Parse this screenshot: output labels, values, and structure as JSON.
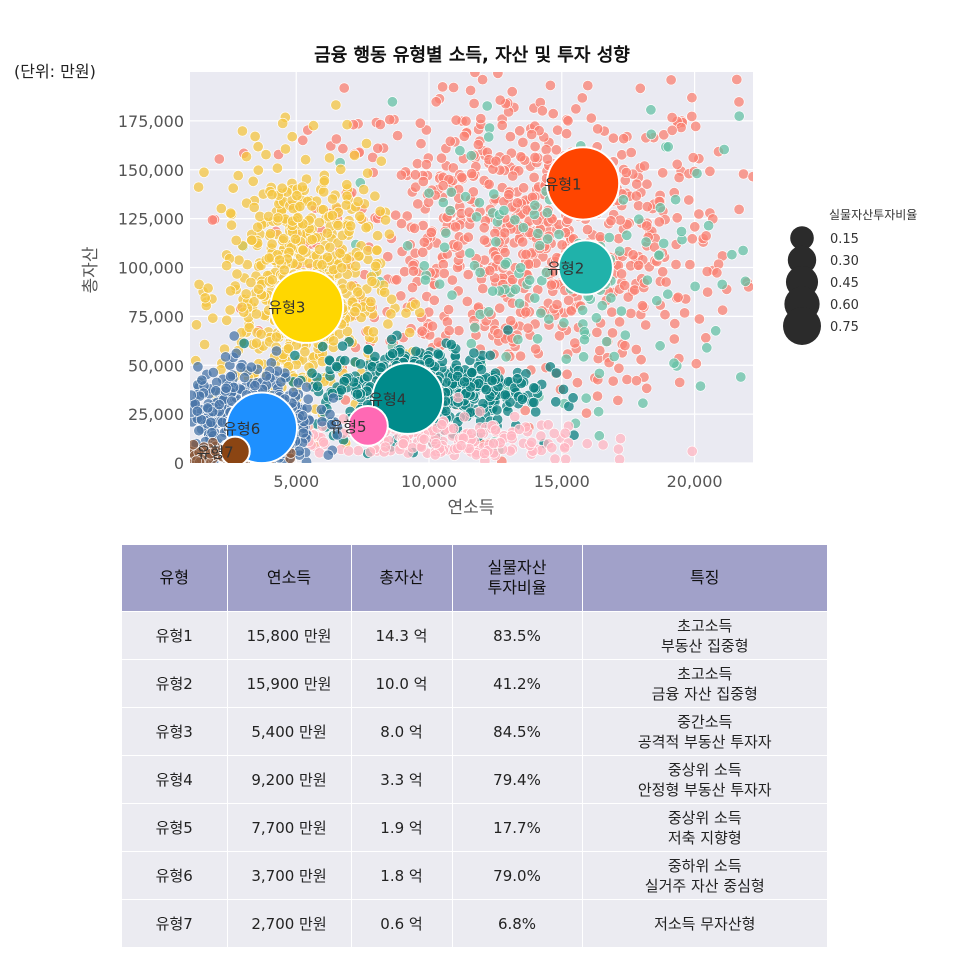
{
  "chart_data": {
    "type": "scatter",
    "title": "금융 행동 유형별 소득, 자산 및 투자 성향",
    "unit_note": "(단위: 만원)",
    "xlabel": "연소득",
    "ylabel": "총자산",
    "xlim": [
      1000,
      22200
    ],
    "ylim": [
      0,
      200000
    ],
    "x_ticks": [
      5000,
      10000,
      15000,
      20000
    ],
    "x_tick_labels": [
      "5,000",
      "10,000",
      "15,000",
      "20,000"
    ],
    "y_ticks": [
      0,
      25000,
      50000,
      75000,
      100000,
      125000,
      150000,
      175000
    ],
    "y_tick_labels": [
      "0",
      "25,000",
      "50,000",
      "75,000",
      "100,000",
      "125,000",
      "150,000",
      "175,000"
    ],
    "grid": true,
    "legend": {
      "title": "실물자산투자비율",
      "placement": "right",
      "sizes": [
        0.15,
        0.3,
        0.45,
        0.6,
        0.75
      ],
      "labels": [
        "0.15",
        "0.30",
        "0.45",
        "0.60",
        "0.75"
      ]
    },
    "centroids": [
      {
        "name": "유형1",
        "x": 15800,
        "y": 143000,
        "ratio": 0.835,
        "color": "#ff4500"
      },
      {
        "name": "유형2",
        "x": 15900,
        "y": 100000,
        "ratio": 0.412,
        "color": "#20b2aa"
      },
      {
        "name": "유형3",
        "x": 5400,
        "y": 80000,
        "ratio": 0.845,
        "color": "#ffd700"
      },
      {
        "name": "유형4",
        "x": 9200,
        "y": 33000,
        "ratio": 0.794,
        "color": "#008b8b"
      },
      {
        "name": "유형5",
        "x": 7700,
        "y": 19000,
        "ratio": 0.177,
        "color": "#ff69b4"
      },
      {
        "name": "유형6",
        "x": 3700,
        "y": 18000,
        "ratio": 0.79,
        "color": "#1e90ff"
      },
      {
        "name": "유형7",
        "x": 2700,
        "y": 6000,
        "ratio": 0.068,
        "color": "#8b4513"
      }
    ],
    "point_clouds": [
      {
        "name": "유형1",
        "color": "#fa8072",
        "x_mean": 13500,
        "x_sd": 4000,
        "y_mean": 115000,
        "y_sd": 40000,
        "count": 850
      },
      {
        "name": "유형2",
        "color": "#66c2a5",
        "x_mean": 15000,
        "x_sd": 4000,
        "y_mean": 95000,
        "y_sd": 40000,
        "count": 170
      },
      {
        "name": "유형3",
        "color": "#f4c542",
        "x_mean": 5200,
        "x_sd": 1500,
        "y_mean": 90000,
        "y_sd": 32000,
        "count": 650
      },
      {
        "name": "유형4",
        "color": "#0b8080",
        "x_mean": 9800,
        "x_sd": 2000,
        "y_mean": 38000,
        "y_sd": 11000,
        "count": 520
      },
      {
        "name": "유형5",
        "color": "#ffb6c1",
        "x_mean": 10000,
        "x_sd": 3000,
        "y_mean": 12000,
        "y_sd": 6000,
        "count": 200
      },
      {
        "name": "유형6",
        "color": "#4a76a8",
        "x_mean": 3200,
        "x_sd": 1300,
        "y_mean": 22000,
        "y_sd": 13000,
        "count": 480
      },
      {
        "name": "유형7",
        "color": "#8b5a3c",
        "x_mean": 2300,
        "x_sd": 1100,
        "y_mean": 4000,
        "y_sd": 2500,
        "count": 100
      }
    ]
  },
  "table": {
    "headers": [
      "유형",
      "연소득",
      "총자산",
      "실물자산 투자비율",
      "특징"
    ],
    "header_lines": [
      [
        "유형"
      ],
      [
        "연소득"
      ],
      [
        "총자산"
      ],
      [
        "실물자산",
        "투자비율"
      ],
      [
        "특징"
      ]
    ],
    "rows": [
      {
        "type": "유형1",
        "income": "15,800 만원",
        "assets": "14.3 억",
        "ratio": "83.5%",
        "feature1": "초고소득",
        "feature2": "부동산 집중형"
      },
      {
        "type": "유형2",
        "income": "15,900 만원",
        "assets": "10.0 억",
        "ratio": "41.2%",
        "feature1": "초고소득",
        "feature2": "금융 자산 집중형"
      },
      {
        "type": "유형3",
        "income": "5,400 만원",
        "assets": "8.0 억",
        "ratio": "84.5%",
        "feature1": "중간소득",
        "feature2": "공격적 부동산 투자자"
      },
      {
        "type": "유형4",
        "income": "9,200 만원",
        "assets": "3.3 억",
        "ratio": "79.4%",
        "feature1": "중상위 소득",
        "feature2": "안정형 부동산 투자자"
      },
      {
        "type": "유형5",
        "income": "7,700 만원",
        "assets": "1.9 억",
        "ratio": "17.7%",
        "feature1": "중상위 소득",
        "feature2": "저축 지향형"
      },
      {
        "type": "유형6",
        "income": "3,700 만원",
        "assets": "1.8 억",
        "ratio": "79.0%",
        "feature1": "중하위 소득",
        "feature2": "실거주 자산 중심형"
      },
      {
        "type": "유형7",
        "income": "2,700 만원",
        "assets": "0.6 억",
        "ratio": "6.8%",
        "feature1": "저소득 무자산형",
        "feature2": ""
      }
    ]
  }
}
